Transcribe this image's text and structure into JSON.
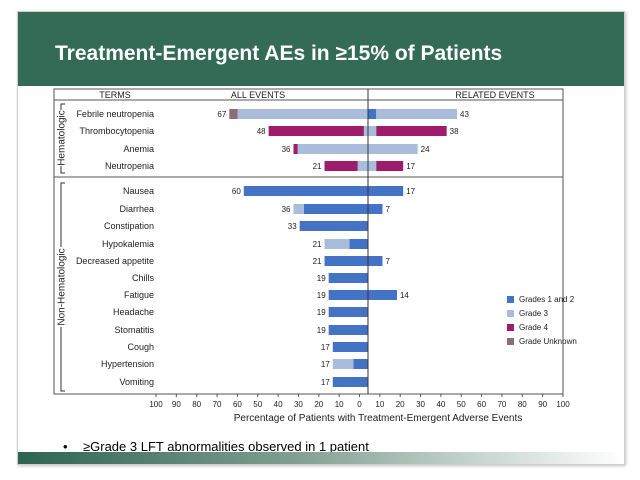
{
  "slide": {
    "title": "Treatment-Emergent AEs in ≥15% of Patients",
    "bullet": "≥Grade 3 LFT abnormalities observed in 1 patient"
  },
  "chart_data": {
    "type": "bar",
    "orientation": "horizontal-butterfly",
    "column_headers": {
      "terms": "TERMS",
      "left": "ALL EVENTS",
      "right": "RELATED EVENTS"
    },
    "xlabel": "Percentage of Patients with Treatment-Emergent Adverse Events",
    "xlim": [
      -100,
      100
    ],
    "xticks": [
      "100",
      "90",
      "80",
      "70",
      "60",
      "50",
      "40",
      "30",
      "20",
      "10",
      "0",
      "10",
      "20",
      "30",
      "40",
      "50",
      "60",
      "70",
      "80",
      "90",
      "100"
    ],
    "groups": [
      {
        "name": "Hematologic",
        "categories": [
          "Febrile neutropenia",
          "Thrombocytopenia",
          "Anemia",
          "Neutropenia"
        ]
      },
      {
        "name": "Non-Hematologic",
        "categories": [
          "Nausea",
          "Diarrhea",
          "Constipation",
          "Hypokalemia",
          "Decreased appetite",
          "Chills",
          "Fatigue",
          "Headache",
          "Stomatitis",
          "Cough",
          "Hypertension",
          "Vomiting"
        ]
      }
    ],
    "legend_position": "right",
    "legend": [
      {
        "key": "g12",
        "label": "Grades 1 and 2",
        "color": "#4472c4"
      },
      {
        "key": "g3",
        "label": "Grade 3",
        "color": "#a9bcdc"
      },
      {
        "key": "g4",
        "label": "Grade 4",
        "color": "#9e1c6b"
      },
      {
        "key": "gu",
        "label": "Grade Unknown",
        "color": "#8c6f74"
      }
    ],
    "rows": [
      {
        "term": "Febrile neutropenia",
        "all_total": "67",
        "related_total": "43",
        "all": {
          "g12": 0,
          "g3": 63,
          "g4": 0,
          "gu": 4
        },
        "related": {
          "g12": 4,
          "g3": 39,
          "g4": 0,
          "gu": 0
        }
      },
      {
        "term": "Thrombocytopenia",
        "all_total": "48",
        "related_total": "38",
        "all": {
          "g12": 0,
          "g3": 2,
          "g4": 46,
          "gu": 0
        },
        "related": {
          "g12": 0,
          "g3": 4,
          "g4": 34,
          "gu": 0
        }
      },
      {
        "term": "Anemia",
        "all_total": "36",
        "related_total": "24",
        "all": {
          "g12": 0,
          "g3": 34,
          "g4": 2,
          "gu": 0
        },
        "related": {
          "g12": 0,
          "g3": 24,
          "g4": 0,
          "gu": 0
        }
      },
      {
        "term": "Neutropenia",
        "all_total": "21",
        "related_total": "17",
        "all": {
          "g12": 0,
          "g3": 5,
          "g4": 16,
          "gu": 0
        },
        "related": {
          "g12": 0,
          "g3": 4,
          "g4": 13,
          "gu": 0
        }
      },
      {
        "term": "Nausea",
        "all_total": "60",
        "related_total": "17",
        "all": {
          "g12": 60,
          "g3": 0,
          "g4": 0,
          "gu": 0
        },
        "related": {
          "g12": 17,
          "g3": 0,
          "g4": 0,
          "gu": 0
        }
      },
      {
        "term": "Diarrhea",
        "all_total": "36",
        "related_total": "7",
        "all": {
          "g12": 31,
          "g3": 5,
          "g4": 0,
          "gu": 0
        },
        "related": {
          "g12": 7,
          "g3": 0,
          "g4": 0,
          "gu": 0
        }
      },
      {
        "term": "Constipation",
        "all_total": "33",
        "related_total": "",
        "all": {
          "g12": 33,
          "g3": 0,
          "g4": 0,
          "gu": 0
        },
        "related": {
          "g12": 0,
          "g3": 0,
          "g4": 0,
          "gu": 0
        }
      },
      {
        "term": "Hypokalemia",
        "all_total": "21",
        "related_total": "",
        "all": {
          "g12": 9,
          "g3": 12,
          "g4": 0,
          "gu": 0
        },
        "related": {
          "g12": 0,
          "g3": 0,
          "g4": 0,
          "gu": 0
        }
      },
      {
        "term": "Decreased appetite",
        "all_total": "21",
        "related_total": "7",
        "all": {
          "g12": 21,
          "g3": 0,
          "g4": 0,
          "gu": 0
        },
        "related": {
          "g12": 7,
          "g3": 0,
          "g4": 0,
          "gu": 0
        }
      },
      {
        "term": "Chills",
        "all_total": "19",
        "related_total": "",
        "all": {
          "g12": 19,
          "g3": 0,
          "g4": 0,
          "gu": 0
        },
        "related": {
          "g12": 0,
          "g3": 0,
          "g4": 0,
          "gu": 0
        }
      },
      {
        "term": "Fatigue",
        "all_total": "19",
        "related_total": "14",
        "all": {
          "g12": 19,
          "g3": 0,
          "g4": 0,
          "gu": 0
        },
        "related": {
          "g12": 14,
          "g3": 0,
          "g4": 0,
          "gu": 0
        }
      },
      {
        "term": "Headache",
        "all_total": "19",
        "related_total": "",
        "all": {
          "g12": 19,
          "g3": 0,
          "g4": 0,
          "gu": 0
        },
        "related": {
          "g12": 0,
          "g3": 0,
          "g4": 0,
          "gu": 0
        }
      },
      {
        "term": "Stomatitis",
        "all_total": "19",
        "related_total": "",
        "all": {
          "g12": 19,
          "g3": 0,
          "g4": 0,
          "gu": 0
        },
        "related": {
          "g12": 0,
          "g3": 0,
          "g4": 0,
          "gu": 0
        }
      },
      {
        "term": "Cough",
        "all_total": "17",
        "related_total": "",
        "all": {
          "g12": 17,
          "g3": 0,
          "g4": 0,
          "gu": 0
        },
        "related": {
          "g12": 0,
          "g3": 0,
          "g4": 0,
          "gu": 0
        }
      },
      {
        "term": "Hypertension",
        "all_total": "17",
        "related_total": "",
        "all": {
          "g12": 7,
          "g3": 10,
          "g4": 0,
          "gu": 0
        },
        "related": {
          "g12": 0,
          "g3": 0,
          "g4": 0,
          "gu": 0
        }
      },
      {
        "term": "Vomiting",
        "all_total": "17",
        "related_total": "",
        "all": {
          "g12": 17,
          "g3": 0,
          "g4": 0,
          "gu": 0
        },
        "related": {
          "g12": 0,
          "g3": 0,
          "g4": 0,
          "gu": 0
        }
      }
    ]
  }
}
